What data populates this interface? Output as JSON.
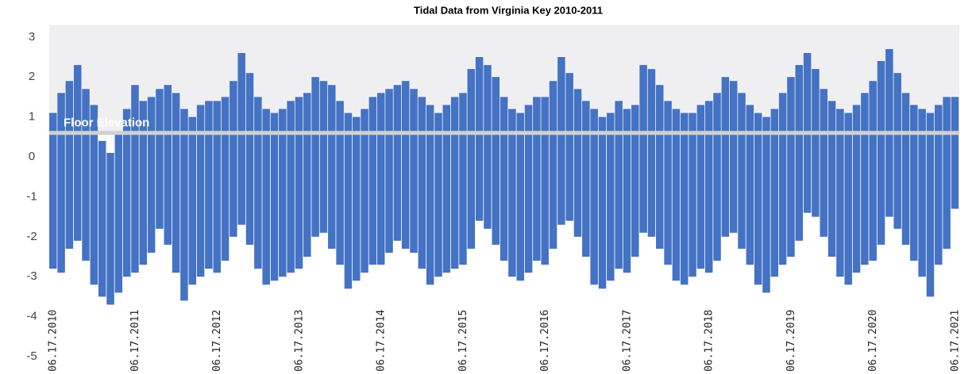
{
  "chart_data": {
    "type": "range-bar",
    "title": "Tidal Data from Virginia Key 2010-2011",
    "categories": [
      "06.17.2010",
      null,
      null,
      null,
      null,
      null,
      null,
      null,
      null,
      null,
      "06.17.2011",
      null,
      null,
      null,
      null,
      null,
      null,
      null,
      null,
      null,
      "06.17.2012",
      null,
      null,
      null,
      null,
      null,
      null,
      null,
      null,
      null,
      "06.17.2013",
      null,
      null,
      null,
      null,
      null,
      null,
      null,
      null,
      null,
      "06.17.2014",
      null,
      null,
      null,
      null,
      null,
      null,
      null,
      null,
      null,
      "06.17.2015",
      null,
      null,
      null,
      null,
      null,
      null,
      null,
      null,
      null,
      "06.17.2016",
      null,
      null,
      null,
      null,
      null,
      null,
      null,
      null,
      null,
      "06.17.2017",
      null,
      null,
      null,
      null,
      null,
      null,
      null,
      null,
      null,
      "06.17.2018",
      null,
      null,
      null,
      null,
      null,
      null,
      null,
      null,
      null,
      "06.17.2019",
      null,
      null,
      null,
      null,
      null,
      null,
      null,
      null,
      null,
      "06.17.2020",
      null,
      null,
      null,
      null,
      null,
      null,
      null,
      null,
      null,
      "06.17.2021"
    ],
    "high": [
      1.1,
      1.6,
      1.9,
      2.3,
      1.7,
      1.3,
      0.4,
      0.1,
      0.6,
      1.2,
      1.8,
      1.4,
      1.5,
      1.7,
      1.8,
      1.6,
      1.2,
      1.0,
      1.3,
      1.4,
      1.4,
      1.5,
      1.9,
      2.6,
      2.1,
      1.5,
      1.2,
      1.1,
      1.2,
      1.4,
      1.5,
      1.6,
      2.0,
      1.9,
      1.8,
      1.4,
      1.1,
      1.0,
      1.2,
      1.5,
      1.6,
      1.7,
      1.8,
      1.9,
      1.7,
      1.5,
      1.3,
      1.1,
      1.3,
      1.5,
      1.6,
      2.2,
      2.5,
      2.3,
      2.0,
      1.5,
      1.2,
      1.1,
      1.3,
      1.5,
      1.5,
      1.9,
      2.5,
      2.1,
      1.7,
      1.4,
      1.2,
      1.0,
      1.1,
      1.4,
      1.2,
      1.3,
      2.3,
      2.2,
      1.8,
      1.4,
      1.2,
      1.1,
      1.1,
      1.3,
      1.4,
      1.6,
      2.0,
      1.9,
      1.6,
      1.3,
      1.1,
      1.0,
      1.2,
      1.6,
      2.0,
      2.3,
      2.6,
      2.2,
      1.7,
      1.4,
      1.2,
      1.1,
      1.3,
      1.6,
      1.9,
      2.4,
      2.7,
      2.1,
      1.6,
      1.3,
      1.2,
      1.1,
      1.3,
      1.5,
      1.5
    ],
    "low": [
      -2.8,
      -2.9,
      -2.3,
      -2.1,
      -2.6,
      -3.2,
      -3.5,
      -3.7,
      -3.4,
      -3.0,
      -2.9,
      -2.7,
      -2.4,
      -1.8,
      -2.2,
      -2.9,
      -3.6,
      -3.2,
      -3.0,
      -2.8,
      -2.9,
      -2.6,
      -2.0,
      -1.7,
      -2.2,
      -2.8,
      -3.2,
      -3.1,
      -3.0,
      -2.9,
      -2.8,
      -2.5,
      -2.0,
      -1.9,
      -2.3,
      -2.7,
      -3.3,
      -3.1,
      -2.9,
      -2.7,
      -2.7,
      -2.4,
      -2.1,
      -2.3,
      -2.4,
      -2.8,
      -3.2,
      -3.0,
      -2.9,
      -2.8,
      -2.7,
      -2.3,
      -1.6,
      -1.8,
      -2.2,
      -2.6,
      -3.0,
      -3.1,
      -2.9,
      -2.6,
      -2.7,
      -2.3,
      -1.7,
      -1.6,
      -2.0,
      -2.5,
      -3.2,
      -3.3,
      -3.1,
      -2.8,
      -2.9,
      -2.5,
      -1.9,
      -2.0,
      -2.3,
      -2.7,
      -3.1,
      -3.2,
      -3.0,
      -2.8,
      -2.9,
      -2.6,
      -2.0,
      -1.9,
      -2.3,
      -2.7,
      -3.2,
      -3.4,
      -3.0,
      -2.7,
      -2.5,
      -2.1,
      -1.4,
      -1.5,
      -2.0,
      -2.5,
      -3.0,
      -3.2,
      -2.9,
      -2.7,
      -2.6,
      -2.2,
      -1.5,
      -1.8,
      -2.2,
      -2.6,
      -3.0,
      -3.5,
      -2.7,
      -2.3,
      -1.3
    ],
    "color": "#4472c4",
    "floor_elevation": {
      "label": "Floor Elevation",
      "value": 0.6
    },
    "ylim": [
      -5,
      3.3
    ],
    "yticks": [
      -5,
      -4,
      -3,
      -2,
      -1,
      0,
      1,
      2,
      3
    ]
  }
}
